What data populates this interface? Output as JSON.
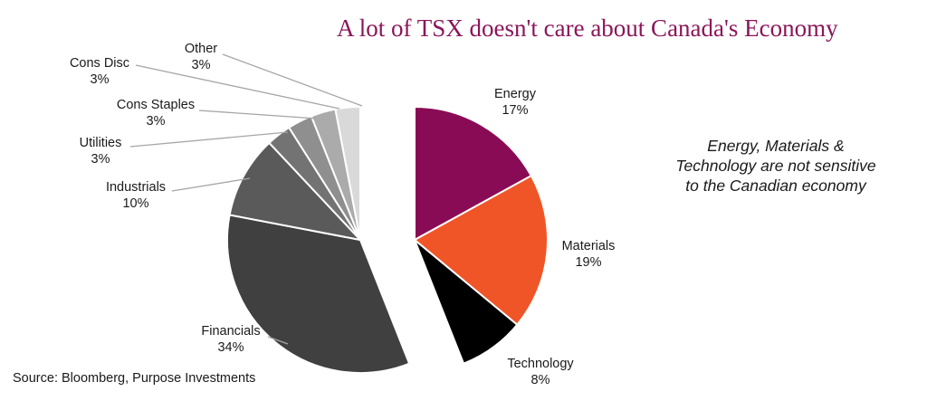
{
  "chart_data": {
    "type": "pie",
    "title": "A lot of TSX doesn't care about Canada's Economy",
    "annotation": "Energy, Materials & Technology are not sensitive to the Canadian economy",
    "source": "Source: Bloomberg, Purpose Investments",
    "exploded_group": [
      "Energy",
      "Materials",
      "Technology"
    ],
    "slices": [
      {
        "name": "Energy",
        "label": "17%",
        "value": 17,
        "color": "#8a0b55"
      },
      {
        "name": "Materials",
        "label": "19%",
        "value": 19,
        "color": "#f05528"
      },
      {
        "name": "Technology",
        "label": "8%",
        "value": 8,
        "color": "#000000"
      },
      {
        "name": "Financials",
        "label": "34%",
        "value": 34,
        "color": "#404040"
      },
      {
        "name": "Industrials",
        "label": "10%",
        "value": 10,
        "color": "#5a5a5a"
      },
      {
        "name": "Utilities",
        "label": "3%",
        "value": 3,
        "color": "#737373"
      },
      {
        "name": "Cons Staples",
        "label": "3%",
        "value": 3,
        "color": "#8f8f8f"
      },
      {
        "name": "Cons Disc",
        "label": "3%",
        "value": 3,
        "color": "#ababab"
      },
      {
        "name": "Other",
        "label": "3%",
        "value": 3,
        "color": "#d9d9d9"
      }
    ]
  }
}
